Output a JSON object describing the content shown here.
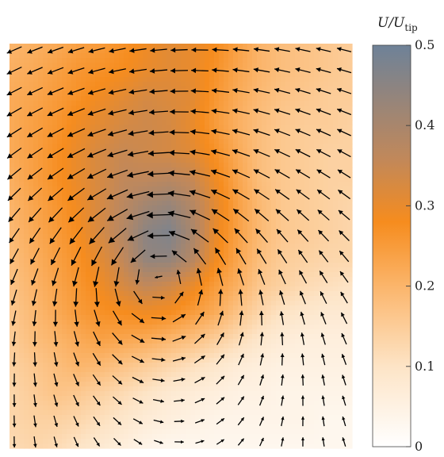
{
  "chart_data": {
    "type": "heatmap",
    "title": "",
    "xlabel": "",
    "ylabel": "",
    "overlay": "quiver",
    "vortex_center": [
      0.43,
      0.56
    ],
    "field_rows_top_to_bottom": [
      [
        0.2,
        0.21,
        0.22,
        0.24,
        0.25,
        0.27,
        0.29,
        0.31,
        0.3,
        0.28,
        0.24,
        0.2,
        0.18,
        0.17,
        0.16,
        0.15
      ],
      [
        0.21,
        0.22,
        0.24,
        0.26,
        0.27,
        0.28,
        0.3,
        0.31,
        0.3,
        0.27,
        0.23,
        0.2,
        0.18,
        0.17,
        0.16,
        0.15
      ],
      [
        0.22,
        0.23,
        0.25,
        0.27,
        0.29,
        0.31,
        0.33,
        0.32,
        0.31,
        0.26,
        0.22,
        0.19,
        0.17,
        0.16,
        0.15,
        0.15
      ],
      [
        0.22,
        0.24,
        0.26,
        0.29,
        0.31,
        0.33,
        0.34,
        0.33,
        0.3,
        0.25,
        0.21,
        0.18,
        0.16,
        0.15,
        0.15,
        0.14
      ],
      [
        0.22,
        0.24,
        0.27,
        0.3,
        0.33,
        0.35,
        0.34,
        0.33,
        0.31,
        0.27,
        0.22,
        0.18,
        0.16,
        0.15,
        0.14,
        0.14
      ],
      [
        0.21,
        0.24,
        0.27,
        0.3,
        0.33,
        0.36,
        0.36,
        0.37,
        0.35,
        0.29,
        0.23,
        0.18,
        0.16,
        0.15,
        0.14,
        0.14
      ],
      [
        0.2,
        0.23,
        0.26,
        0.29,
        0.33,
        0.37,
        0.41,
        0.43,
        0.38,
        0.31,
        0.24,
        0.19,
        0.16,
        0.15,
        0.14,
        0.13
      ],
      [
        0.19,
        0.22,
        0.25,
        0.28,
        0.33,
        0.38,
        0.45,
        0.47,
        0.4,
        0.3,
        0.24,
        0.19,
        0.16,
        0.15,
        0.14,
        0.13
      ],
      [
        0.18,
        0.21,
        0.24,
        0.27,
        0.31,
        0.36,
        0.44,
        0.44,
        0.38,
        0.29,
        0.23,
        0.18,
        0.15,
        0.14,
        0.13,
        0.13
      ],
      [
        0.17,
        0.2,
        0.23,
        0.26,
        0.29,
        0.33,
        0.36,
        0.34,
        0.3,
        0.25,
        0.21,
        0.16,
        0.14,
        0.12,
        0.11,
        0.1
      ],
      [
        0.16,
        0.19,
        0.22,
        0.25,
        0.27,
        0.28,
        0.29,
        0.28,
        0.25,
        0.22,
        0.17,
        0.13,
        0.1,
        0.09,
        0.08,
        0.08
      ],
      [
        0.15,
        0.18,
        0.2,
        0.22,
        0.24,
        0.23,
        0.22,
        0.2,
        0.18,
        0.15,
        0.12,
        0.09,
        0.07,
        0.06,
        0.06,
        0.06
      ],
      [
        0.14,
        0.16,
        0.18,
        0.2,
        0.19,
        0.17,
        0.15,
        0.13,
        0.11,
        0.09,
        0.07,
        0.06,
        0.05,
        0.05,
        0.05,
        0.05
      ],
      [
        0.13,
        0.15,
        0.17,
        0.16,
        0.14,
        0.12,
        0.1,
        0.08,
        0.07,
        0.06,
        0.05,
        0.05,
        0.04,
        0.04,
        0.04,
        0.04
      ],
      [
        0.13,
        0.14,
        0.14,
        0.13,
        0.11,
        0.09,
        0.07,
        0.06,
        0.05,
        0.04,
        0.04,
        0.04,
        0.04,
        0.04,
        0.03,
        0.03
      ],
      [
        0.12,
        0.13,
        0.12,
        0.1,
        0.08,
        0.06,
        0.04,
        0.03,
        0.03,
        0.03,
        0.03,
        0.03,
        0.03,
        0.03,
        0.03,
        0.03
      ]
    ],
    "colorbar": {
      "title_main": "U/U",
      "title_sub": "tip",
      "range": [
        0,
        0.5
      ],
      "ticks": [
        "0",
        "0.1",
        "0.2",
        "0.3",
        "0.4",
        "0.5"
      ],
      "tick_values": [
        0,
        0.1,
        0.2,
        0.3,
        0.4,
        0.5
      ],
      "stops": [
        {
          "value": 0.0,
          "color": "#ffffff"
        },
        {
          "value": 0.1,
          "color": "#fde4c6"
        },
        {
          "value": 0.2,
          "color": "#fbb56b"
        },
        {
          "value": 0.28,
          "color": "#f68c1e"
        },
        {
          "value": 0.36,
          "color": "#c0885b"
        },
        {
          "value": 0.5,
          "color": "#6e8298"
        }
      ]
    },
    "arrow_color": "#000000"
  }
}
